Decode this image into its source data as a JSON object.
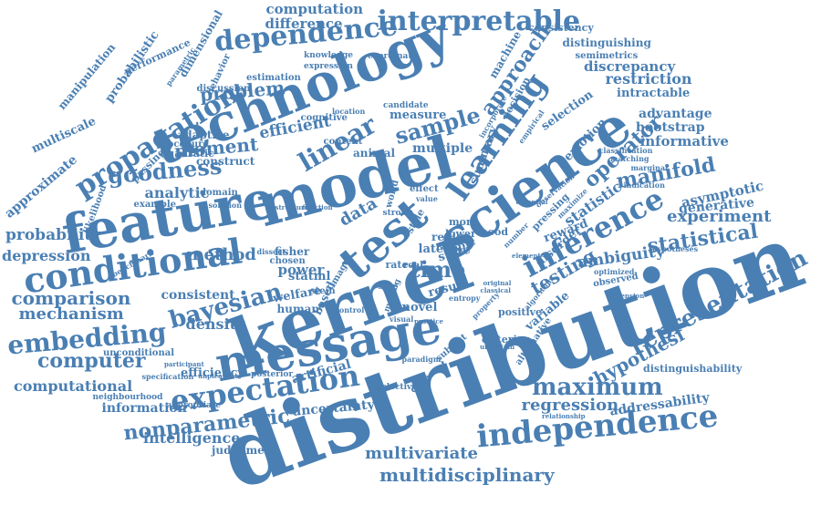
{
  "title": "Word cloud",
  "colors": {
    "word": "#4a7fb3",
    "background": "#ffffff"
  },
  "words": [
    "distribution",
    "kernel",
    "model",
    "message",
    "feature",
    "technology",
    "science",
    "test",
    "conditional",
    "independence",
    "expectation",
    "inference",
    "dependence",
    "interpretable",
    "learning",
    "representation",
    "embedding",
    "propagation",
    "linear",
    "statistical",
    "bayesian",
    "multidisciplinary",
    "nonparametric",
    "maximum",
    "goodness",
    "computer",
    "sample",
    "operator",
    "manifold",
    "approach",
    "hypothesi",
    "comparison",
    "time",
    "regression",
    "testing",
    "moment",
    "probability",
    "problem",
    "multivariate",
    "mechanism",
    "experiment",
    "computational",
    "depression",
    "method",
    "intelligence",
    "ambiguity",
    "density",
    "efficient",
    "statistic",
    "computation",
    "difference",
    "analytic",
    "restriction",
    "discrepancy",
    "informative",
    "advantage",
    "bootstrap",
    "asymptotic",
    "generative",
    "addressability",
    "distinguishability",
    "uncertainty",
    "artificial",
    "consistent",
    "welfare",
    "efficiency",
    "information",
    "judgement",
    "approximate",
    "multiscale",
    "manipulation",
    "probabilistic",
    "performance",
    "dimensional",
    "behavior",
    "emotion",
    "selection",
    "intractable",
    "consistency",
    "distinguishing",
    "semimetrics",
    "machine",
    "decision",
    "summary",
    "variable",
    "power",
    "positive",
    "criterion",
    "novel",
    "human",
    "latent",
    "multiple",
    "region",
    "reward",
    "disorder",
    "data",
    "adaptive",
    "quadratic",
    "procedure",
    "construct",
    "passing",
    "likelihood",
    "example",
    "domain",
    "discussion",
    "estimation",
    "expression",
    "knowledge",
    "coordinate",
    "candidate",
    "measure",
    "location",
    "cognitive",
    "animal",
    "content",
    "unconditional",
    "specification",
    "neighbourhood",
    "appropriate",
    "posterior",
    "selective",
    "different",
    "subject",
    "paradigm",
    "fisher",
    "chosen",
    "stein",
    "state",
    "topic",
    "mood",
    "style",
    "size",
    "real",
    "rate",
    "image",
    "dissect",
    "classification",
    "matching",
    "marginal",
    "indication",
    "hypotheses",
    "optimized",
    "observed",
    "dimension",
    "relationship",
    "uncertain",
    "statml",
    "based",
    "result",
    "more",
    "lower",
    "world",
    "effect",
    "alternative",
    "algorithm",
    "pressing",
    "number",
    "original",
    "classical",
    "visual",
    "structure",
    "function",
    "strong",
    "benchmark",
    "solution",
    "parametric",
    "participant",
    "unpleasant",
    "practice",
    "control",
    "making",
    "property",
    "entropy",
    "observation",
    "maximize",
    "incorporate",
    "empirical",
    "essential",
    "element",
    "value"
  ]
}
